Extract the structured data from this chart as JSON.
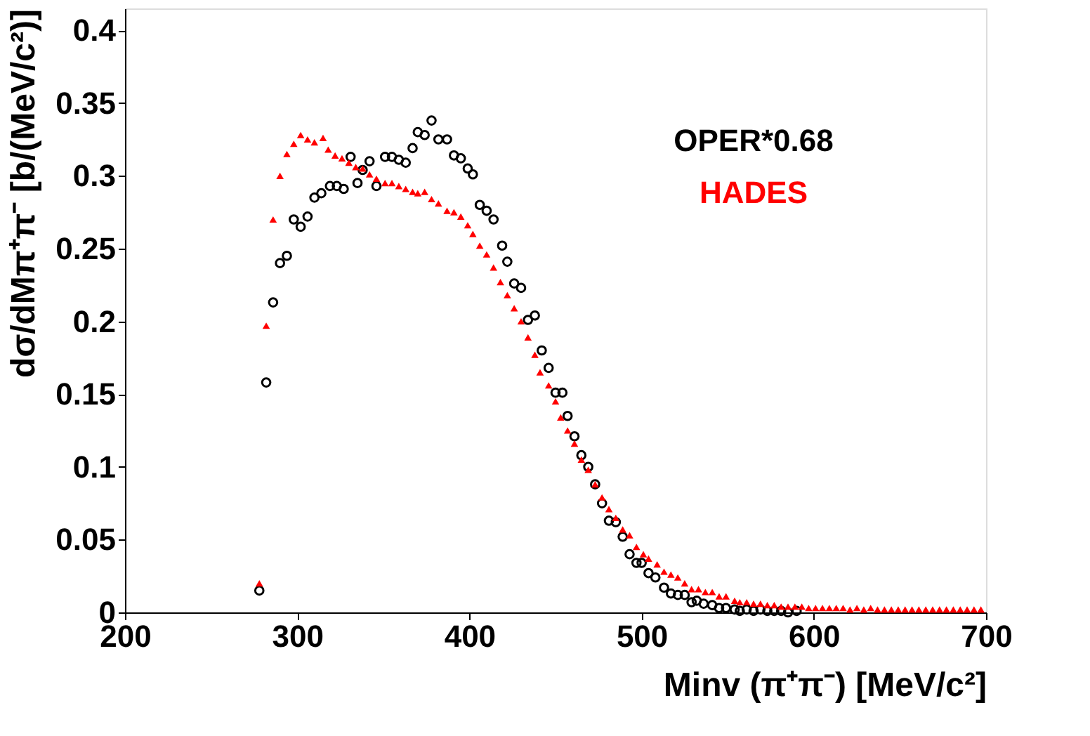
{
  "chart_data": {
    "type": "scatter",
    "xlabel": "Minv (π⁺π⁻)   [MeV/c²]",
    "ylabel": "dσ/dMπ⁺π⁻   [b/(MeV/c²)]",
    "xlim": [
      200,
      700
    ],
    "xticks": [
      200,
      300,
      400,
      500,
      600,
      700
    ],
    "ylim": [
      0,
      0.415
    ],
    "yticks": [
      0,
      0.05,
      0.1,
      0.15,
      0.2,
      0.25,
      0.3,
      0.35,
      0.4
    ],
    "grid": false,
    "legend": "top right",
    "series": [
      {
        "name": "OPER*0.68",
        "color": "#000000",
        "marker": "circle",
        "x": [
          278,
          282,
          286,
          290,
          294,
          298,
          302,
          306,
          310,
          314,
          319,
          323,
          327,
          331,
          335,
          338,
          342,
          346,
          351,
          355,
          359,
          363,
          367,
          370,
          374,
          378,
          382,
          387,
          391,
          395,
          399,
          402,
          406,
          410,
          414,
          419,
          422,
          426,
          430,
          434,
          438,
          442,
          446,
          450,
          454,
          457,
          461,
          465,
          469,
          473,
          477,
          481,
          485,
          489,
          493,
          497,
          500,
          504,
          508,
          513,
          517,
          521,
          525,
          529,
          532,
          536,
          541,
          545,
          549,
          554,
          557,
          561,
          565,
          569,
          573,
          577,
          581,
          585,
          590
        ],
        "values": [
          0.015,
          0.158,
          0.213,
          0.24,
          0.245,
          0.27,
          0.265,
          0.272,
          0.285,
          0.288,
          0.293,
          0.293,
          0.291,
          0.313,
          0.295,
          0.304,
          0.31,
          0.293,
          0.313,
          0.313,
          0.311,
          0.309,
          0.319,
          0.33,
          0.328,
          0.338,
          0.325,
          0.325,
          0.314,
          0.312,
          0.305,
          0.301,
          0.28,
          0.276,
          0.27,
          0.252,
          0.241,
          0.226,
          0.223,
          0.201,
          0.204,
          0.18,
          0.168,
          0.151,
          0.151,
          0.135,
          0.121,
          0.108,
          0.1,
          0.088,
          0.075,
          0.063,
          0.062,
          0.052,
          0.04,
          0.034,
          0.034,
          0.027,
          0.024,
          0.017,
          0.013,
          0.012,
          0.012,
          0.007,
          0.008,
          0.006,
          0.005,
          0.003,
          0.003,
          0.002,
          0.001,
          0.002,
          0.001,
          0.002,
          0.001,
          0.001,
          0.001,
          0.0,
          0.001
        ]
      },
      {
        "name": "HADES",
        "color": "#ff0000",
        "marker": "triangle",
        "x": [
          278,
          282,
          286,
          290,
          294,
          298,
          302,
          306,
          310,
          315,
          318,
          322,
          326,
          330,
          334,
          338,
          342,
          346,
          351,
          355,
          359,
          363,
          367,
          370,
          374,
          378,
          382,
          387,
          391,
          395,
          399,
          402,
          406,
          410,
          414,
          418,
          422,
          426,
          430,
          434,
          438,
          441,
          446,
          450,
          453,
          457,
          461,
          465,
          469,
          473,
          477,
          481,
          485,
          489,
          493,
          497,
          501,
          504,
          509,
          513,
          517,
          521,
          525,
          529,
          533,
          537,
          541,
          545,
          549,
          554,
          557,
          561,
          565,
          569,
          573,
          577,
          581,
          585,
          589,
          593,
          597,
          601,
          605,
          609,
          613,
          617,
          621,
          625,
          629,
          633,
          637,
          641,
          645,
          649,
          653,
          657,
          661,
          665,
          669,
          673,
          677,
          681,
          685,
          689,
          693,
          697
        ],
        "values": [
          0.02,
          0.197,
          0.27,
          0.3,
          0.315,
          0.322,
          0.328,
          0.325,
          0.323,
          0.326,
          0.318,
          0.314,
          0.312,
          0.309,
          0.306,
          0.305,
          0.301,
          0.298,
          0.295,
          0.295,
          0.293,
          0.291,
          0.289,
          0.288,
          0.289,
          0.284,
          0.281,
          0.276,
          0.275,
          0.272,
          0.266,
          0.26,
          0.252,
          0.246,
          0.237,
          0.227,
          0.218,
          0.209,
          0.2,
          0.189,
          0.177,
          0.165,
          0.156,
          0.145,
          0.134,
          0.125,
          0.116,
          0.105,
          0.098,
          0.088,
          0.079,
          0.071,
          0.065,
          0.057,
          0.053,
          0.045,
          0.04,
          0.037,
          0.033,
          0.028,
          0.026,
          0.024,
          0.02,
          0.016,
          0.016,
          0.014,
          0.014,
          0.011,
          0.011,
          0.008,
          0.007,
          0.007,
          0.006,
          0.006,
          0.005,
          0.005,
          0.004,
          0.004,
          0.004,
          0.004,
          0.003,
          0.003,
          0.003,
          0.003,
          0.003,
          0.003,
          0.002,
          0.003,
          0.002,
          0.003,
          0.002,
          0.002,
          0.002,
          0.002,
          0.002,
          0.002,
          0.002,
          0.002,
          0.002,
          0.002,
          0.002,
          0.002,
          0.002,
          0.002,
          0.002,
          0.002
        ]
      }
    ]
  }
}
